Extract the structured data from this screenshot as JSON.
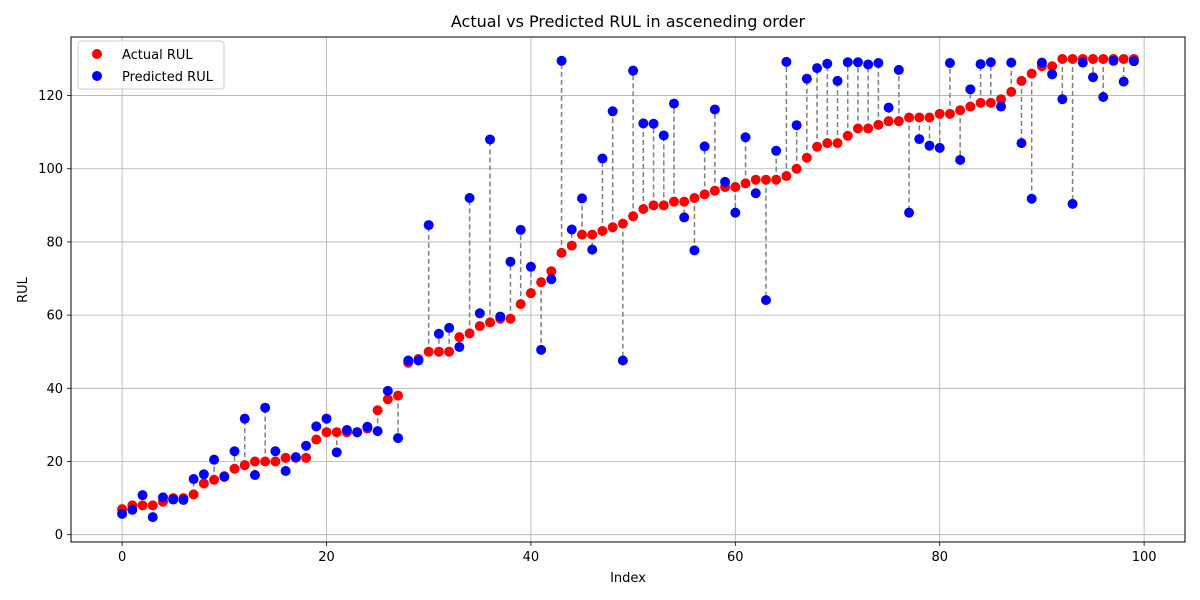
{
  "chart_data": {
    "type": "scatter",
    "title": "Actual vs Predicted RUL in asceneding order",
    "xlabel": "Index",
    "ylabel": "RUL",
    "xlim": [
      -5,
      104
    ],
    "ylim": [
      -2,
      136
    ],
    "xticks": [
      0,
      20,
      40,
      60,
      80,
      100
    ],
    "yticks": [
      0,
      20,
      40,
      60,
      80,
      100,
      120
    ],
    "grid": true,
    "legend_position": "top-left",
    "connector_style": "dashed gray vertical line between actual and predicted",
    "series": [
      {
        "name": "Actual RUL",
        "color": "#ff0000",
        "x": [
          0,
          1,
          2,
          3,
          4,
          5,
          6,
          7,
          8,
          9,
          10,
          11,
          12,
          13,
          14,
          15,
          16,
          17,
          18,
          19,
          20,
          21,
          22,
          23,
          24,
          25,
          26,
          27,
          28,
          29,
          30,
          31,
          32,
          33,
          34,
          35,
          36,
          37,
          38,
          39,
          40,
          41,
          42,
          43,
          44,
          45,
          46,
          47,
          48,
          49,
          50,
          51,
          52,
          53,
          54,
          55,
          56,
          57,
          58,
          59,
          60,
          61,
          62,
          63,
          64,
          65,
          66,
          67,
          68,
          69,
          70,
          71,
          72,
          73,
          74,
          75,
          76,
          77,
          78,
          79,
          80,
          81,
          82,
          83,
          84,
          85,
          86,
          87,
          88,
          89,
          90,
          91,
          92,
          93,
          94,
          95,
          96,
          97,
          98,
          99
        ],
        "values": [
          7,
          8,
          8,
          8,
          9,
          10,
          10,
          11,
          14,
          15,
          16,
          18,
          19,
          20,
          20,
          20,
          21,
          21,
          21,
          26,
          28,
          28,
          28,
          28,
          29,
          34,
          37,
          38,
          47,
          48,
          50,
          50,
          50,
          54,
          55,
          57,
          58,
          59,
          59,
          63,
          66,
          69,
          72,
          77,
          79,
          82,
          82,
          83,
          84,
          85,
          87,
          89,
          90,
          90,
          91,
          91,
          92,
          93,
          94,
          95,
          95,
          96,
          97,
          97,
          97,
          98,
          100,
          103,
          106,
          107,
          107,
          109,
          111,
          111,
          112,
          113,
          113,
          114,
          114,
          114,
          115,
          115,
          116,
          117,
          118,
          118,
          119,
          121,
          124,
          126,
          128,
          128,
          130,
          130,
          130,
          130,
          130,
          130,
          130,
          130
        ]
      },
      {
        "name": "Predicted RUL",
        "color": "#0000ff",
        "x": [
          0,
          1,
          2,
          3,
          4,
          5,
          6,
          7,
          8,
          9,
          10,
          11,
          12,
          13,
          14,
          15,
          16,
          17,
          18,
          19,
          20,
          21,
          22,
          23,
          24,
          25,
          26,
          27,
          28,
          29,
          30,
          31,
          32,
          33,
          34,
          35,
          36,
          37,
          38,
          39,
          40,
          41,
          42,
          43,
          44,
          45,
          46,
          47,
          48,
          49,
          50,
          51,
          52,
          53,
          54,
          55,
          56,
          57,
          58,
          59,
          60,
          61,
          62,
          63,
          64,
          65,
          66,
          67,
          68,
          69,
          70,
          71,
          72,
          73,
          74,
          75,
          76,
          77,
          78,
          79,
          80,
          81,
          82,
          83,
          84,
          85,
          86,
          87,
          88,
          89,
          90,
          91,
          92,
          93,
          94,
          95,
          96,
          97,
          98,
          99
        ],
        "values": [
          5.7,
          6.8,
          10.8,
          4.8,
          10.2,
          9.6,
          9.5,
          15.2,
          16.5,
          20.5,
          15.8,
          22.8,
          31.7,
          16.3,
          34.7,
          22.8,
          17.4,
          21.2,
          24.3,
          29.6,
          31.7,
          22.5,
          28.6,
          28.0,
          29.5,
          28.3,
          39.3,
          26.4,
          47.6,
          47.6,
          84.6,
          54.9,
          56.5,
          51.3,
          92.0,
          60.5,
          108.0,
          59.6,
          74.6,
          83.3,
          73.2,
          50.5,
          69.8,
          129.5,
          83.4,
          91.9,
          77.9,
          102.8,
          115.7,
          47.6,
          126.8,
          112.4,
          112.3,
          109.1,
          117.8,
          86.7,
          77.7,
          106.1,
          116.2,
          96.4,
          88.0,
          108.6,
          93.3,
          64.1,
          104.9,
          129.2,
          111.9,
          124.6,
          127.5,
          128.7,
          124.0,
          129.1,
          129.1,
          128.5,
          128.9,
          116.7,
          127.0,
          88.0,
          108.1,
          106.3,
          105.7,
          128.9,
          102.4,
          121.7,
          128.6,
          129.1,
          117.0,
          129.0,
          107.0,
          91.8,
          129.0,
          125.8,
          119.0,
          90.4,
          129.0,
          125.0,
          119.6,
          129.5,
          123.8,
          129.4
        ]
      }
    ]
  }
}
